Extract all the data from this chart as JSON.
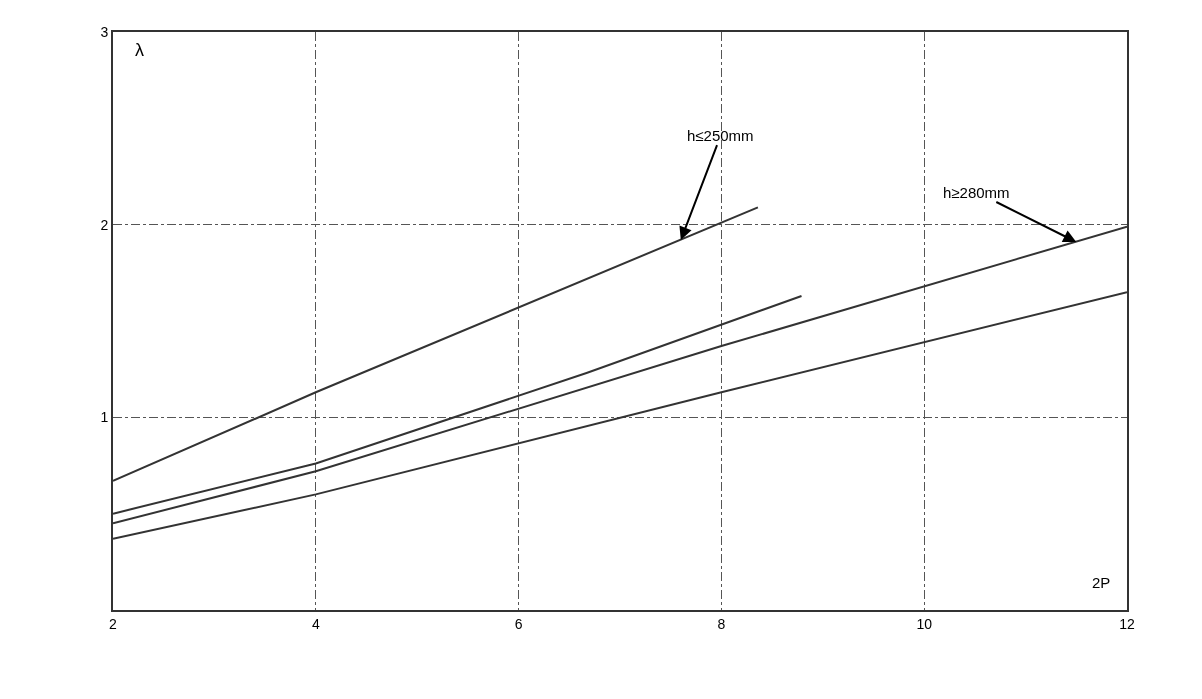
{
  "chart_data": {
    "type": "line",
    "xlabel": "2P",
    "ylabel": "λ",
    "series": [
      {
        "color": "#333333",
        "x": [
          2,
          4,
          8.36
        ],
        "values": [
          0.67,
          1.13,
          2.09
        ]
      },
      {
        "color": "#333333",
        "x": [
          2,
          4,
          6.67,
          8.79
        ],
        "values": [
          0.5,
          0.76,
          1.23,
          1.63
        ]
      },
      {
        "color": "#333333",
        "x": [
          2,
          4,
          8,
          12
        ],
        "values": [
          0.45,
          0.72,
          1.37,
          1.99
        ]
      },
      {
        "color": "#333333",
        "x": [
          2,
          4,
          8,
          12
        ],
        "values": [
          0.37,
          0.6,
          1.13,
          1.65
        ]
      }
    ],
    "annotations": [
      {
        "text": "h≤250mm",
        "x": 7.6,
        "y": 1.92
      },
      {
        "text": "h≥280mm",
        "x": 11.5,
        "y": 1.91
      }
    ],
    "xlim": [
      2,
      12
    ],
    "xticks": [
      2,
      4,
      6,
      8,
      10,
      12
    ],
    "ylim": [
      0,
      3
    ],
    "yticks": [
      {
        "value": 0,
        "label": null
      },
      1,
      2,
      3
    ],
    "grid": true,
    "marker": "none",
    "line_style": "solid"
  }
}
